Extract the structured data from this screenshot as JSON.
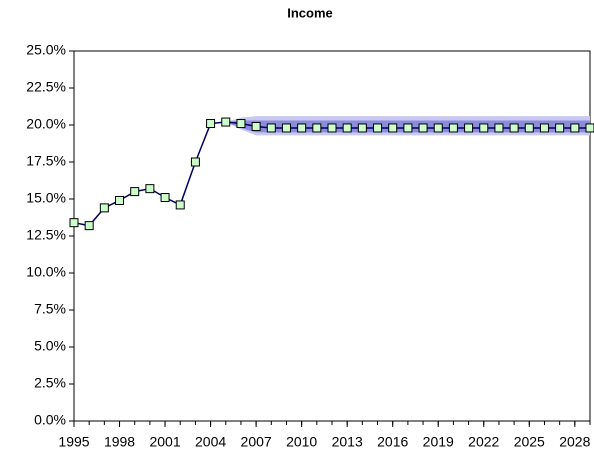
{
  "chart_data": {
    "type": "line",
    "title": "Income",
    "x": [
      1995,
      1996,
      1997,
      1998,
      1999,
      2000,
      2001,
      2002,
      2003,
      2004,
      2005,
      2006,
      2007,
      2008,
      2009,
      2010,
      2011,
      2012,
      2013,
      2014,
      2015,
      2016,
      2017,
      2018,
      2019,
      2020,
      2021,
      2022,
      2023,
      2024,
      2025,
      2026,
      2027,
      2028,
      2029
    ],
    "series": [
      {
        "color": "#000066",
        "marker_color": "#ccffcc",
        "values": [
          13.4,
          13.2,
          14.4,
          14.9,
          15.5,
          15.7,
          15.1,
          14.6,
          17.5,
          20.1,
          20.2,
          20.1,
          19.9,
          19.8,
          19.8,
          19.8,
          19.8,
          19.8,
          19.8,
          19.8,
          19.8,
          19.8,
          19.8,
          19.8,
          19.8,
          19.8,
          19.8,
          19.8,
          19.8,
          19.8,
          19.8,
          19.8,
          19.8,
          19.8,
          19.8
        ]
      }
    ],
    "bands": [
      {
        "color": "#c8c8f0",
        "lower": [
          null,
          null,
          null,
          null,
          null,
          null,
          null,
          null,
          null,
          null,
          20.2,
          19.7,
          19.3,
          19.3,
          19.3,
          19.3,
          19.3,
          19.3,
          19.3,
          19.3,
          19.3,
          19.3,
          19.3,
          19.3,
          19.3,
          19.3,
          19.3,
          19.3,
          19.3,
          19.3,
          19.3,
          19.3,
          19.3,
          19.3,
          19.3
        ],
        "upper": [
          null,
          null,
          null,
          null,
          null,
          null,
          null,
          null,
          null,
          null,
          20.2,
          20.5,
          20.6,
          20.6,
          20.6,
          20.6,
          20.6,
          20.6,
          20.6,
          20.6,
          20.6,
          20.6,
          20.6,
          20.6,
          20.6,
          20.6,
          20.6,
          20.6,
          20.6,
          20.6,
          20.6,
          20.6,
          20.6,
          20.6,
          20.6
        ]
      },
      {
        "color": "#8c8cdc",
        "lower": [
          null,
          null,
          null,
          null,
          null,
          null,
          null,
          null,
          null,
          null,
          20.2,
          19.8,
          19.5,
          19.5,
          19.5,
          19.5,
          19.5,
          19.5,
          19.5,
          19.5,
          19.5,
          19.5,
          19.5,
          19.5,
          19.5,
          19.5,
          19.5,
          19.5,
          19.5,
          19.5,
          19.5,
          19.5,
          19.5,
          19.5,
          19.5
        ],
        "upper": [
          null,
          null,
          null,
          null,
          null,
          null,
          null,
          null,
          null,
          null,
          20.2,
          20.3,
          20.3,
          20.3,
          20.3,
          20.3,
          20.3,
          20.3,
          20.3,
          20.3,
          20.3,
          20.3,
          20.3,
          20.3,
          20.3,
          20.3,
          20.3,
          20.3,
          20.3,
          20.3,
          20.3,
          20.3,
          20.3,
          20.3,
          20.3
        ]
      }
    ],
    "xlim": [
      1995,
      2029
    ],
    "xticks": [
      1995,
      1998,
      2001,
      2004,
      2007,
      2010,
      2013,
      2016,
      2019,
      2022,
      2025,
      2028
    ],
    "ylim": [
      0,
      25
    ],
    "yticks": [
      {
        "value": 0,
        "label": "0.0%"
      },
      {
        "value": 2.5,
        "label": "2.5%"
      },
      {
        "value": 5,
        "label": "5.0%"
      },
      {
        "value": 7.5,
        "label": "7.5%"
      },
      {
        "value": 10,
        "label": "10.0%"
      },
      {
        "value": 12.5,
        "label": "12.5%"
      },
      {
        "value": 15,
        "label": "15.0%"
      },
      {
        "value": 17.5,
        "label": "17.5%"
      },
      {
        "value": 20,
        "label": "20.0%"
      },
      {
        "value": 22.5,
        "label": "22.5%"
      },
      {
        "value": 25,
        "label": "25.0%"
      }
    ]
  }
}
